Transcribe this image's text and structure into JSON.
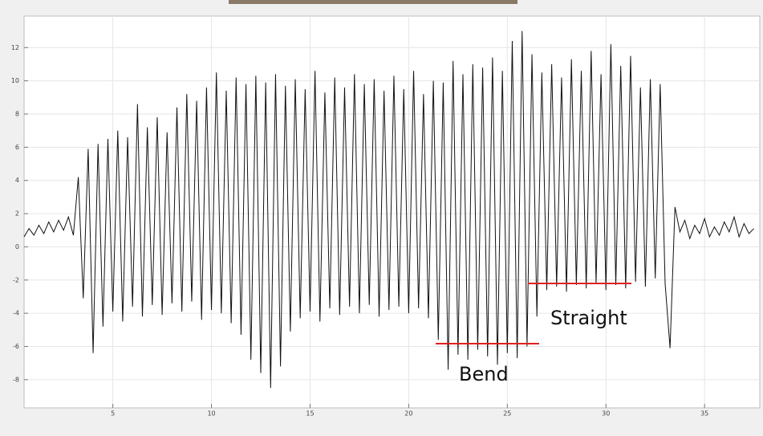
{
  "chart_data": {
    "type": "line",
    "x": [
      0.5,
      0.75,
      1,
      1.25,
      1.5,
      1.75,
      2,
      2.25,
      2.5,
      2.75,
      3,
      3.25,
      3.5,
      3.75,
      4,
      4.25,
      4.5,
      4.75,
      5,
      5.25,
      5.5,
      5.75,
      6,
      6.25,
      6.5,
      6.75,
      7,
      7.25,
      7.5,
      7.75,
      8,
      8.25,
      8.5,
      8.75,
      9,
      9.25,
      9.5,
      9.75,
      10,
      10.25,
      10.5,
      10.75,
      11,
      11.25,
      11.5,
      11.75,
      12,
      12.25,
      12.5,
      12.75,
      13,
      13.25,
      13.5,
      13.75,
      14,
      14.25,
      14.5,
      14.75,
      15,
      15.25,
      15.5,
      15.75,
      16,
      16.25,
      16.5,
      16.75,
      17,
      17.25,
      17.5,
      17.75,
      18,
      18.25,
      18.5,
      18.75,
      19,
      19.25,
      19.5,
      19.75,
      20,
      20.25,
      20.5,
      20.75,
      21,
      21.25,
      21.5,
      21.75,
      22,
      22.25,
      22.5,
      22.75,
      23,
      23.25,
      23.5,
      23.75,
      24,
      24.25,
      24.5,
      24.75,
      25,
      25.25,
      25.5,
      25.75,
      26,
      26.25,
      26.5,
      26.75,
      27,
      27.25,
      27.5,
      27.75,
      28,
      28.25,
      28.5,
      28.75,
      29,
      29.25,
      29.5,
      29.75,
      30,
      30.25,
      30.5,
      30.75,
      31,
      31.25,
      31.5,
      31.75,
      32,
      32.25,
      32.5,
      32.75,
      33,
      33.25,
      33.5,
      33.75,
      34,
      34.25,
      34.5,
      34.75,
      35,
      35.25,
      35.5,
      35.75,
      36,
      36.25,
      36.5,
      36.75,
      37,
      37.25,
      37.5
    ],
    "values": [
      0.6,
      1.1,
      0.7,
      1.3,
      0.8,
      1.5,
      0.9,
      1.6,
      1.0,
      1.8,
      0.7,
      4.2,
      -3.1,
      5.9,
      -6.4,
      6.2,
      -4.8,
      6.5,
      -3.9,
      7.0,
      -4.5,
      6.6,
      -3.6,
      8.6,
      -4.2,
      7.2,
      -3.5,
      7.8,
      -4.1,
      6.9,
      -3.4,
      8.4,
      -3.9,
      9.2,
      -3.3,
      8.8,
      -4.4,
      9.6,
      -3.8,
      10.5,
      -4.0,
      9.4,
      -4.6,
      10.2,
      -5.3,
      9.8,
      -6.8,
      10.3,
      -7.6,
      9.9,
      -8.5,
      10.4,
      -7.2,
      9.7,
      -5.1,
      10.1,
      -4.3,
      9.5,
      -3.9,
      10.6,
      -4.5,
      9.3,
      -3.7,
      10.2,
      -4.1,
      9.6,
      -3.6,
      10.4,
      -4.0,
      9.8,
      -3.5,
      10.1,
      -4.2,
      9.4,
      -3.8,
      10.3,
      -3.6,
      9.5,
      -4.0,
      10.6,
      -3.7,
      9.2,
      -4.3,
      10.0,
      -5.6,
      9.9,
      -7.4,
      11.2,
      -6.5,
      10.4,
      -6.8,
      11.0,
      -6.2,
      10.8,
      -6.6,
      11.4,
      -7.1,
      10.6,
      -6.4,
      12.4,
      -6.7,
      13.0,
      -6.0,
      11.6,
      -4.2,
      10.5,
      -2.6,
      11.0,
      -2.4,
      10.2,
      -2.7,
      11.3,
      -2.3,
      10.6,
      -2.5,
      11.8,
      -2.2,
      10.4,
      -2.6,
      12.2,
      -2.3,
      10.9,
      -2.5,
      11.5,
      -2.1,
      9.6,
      -2.4,
      10.1,
      -1.9,
      9.8,
      -2.2,
      -6.1,
      2.4,
      0.9,
      1.6,
      0.5,
      1.3,
      0.8,
      1.7,
      0.6,
      1.2,
      0.7,
      1.5,
      0.9,
      1.8,
      0.6,
      1.4,
      0.8,
      1.1
    ],
    "color": "#111111",
    "xlim": [
      0.5,
      37.8
    ],
    "ylim": [
      -9.7,
      13.9
    ],
    "xticks": [
      5,
      10,
      15,
      20,
      25,
      30,
      35
    ],
    "yticks": [
      -8,
      -6,
      -4,
      -2,
      0,
      2,
      4,
      6,
      8,
      10,
      12
    ],
    "grid": true,
    "annotations": [
      "Straight",
      "Bend"
    ]
  }
}
